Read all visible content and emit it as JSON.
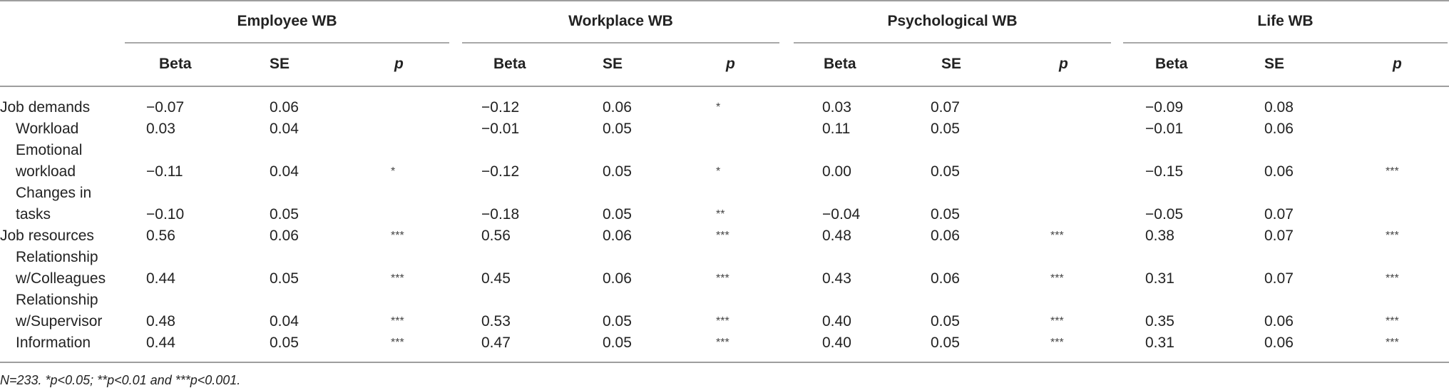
{
  "table": {
    "groups": [
      "Employee WB",
      "Workplace WB",
      "Psychological WB",
      "Life WB"
    ],
    "columns": [
      "Beta",
      "SE",
      "p"
    ],
    "rows": [
      {
        "label": "Job demands",
        "indent": 0,
        "label_top": "",
        "cells": [
          "−0.07",
          "0.06",
          "",
          "−0.12",
          "0.06",
          "*",
          "0.03",
          "0.07",
          "",
          "−0.09",
          "0.08",
          ""
        ]
      },
      {
        "label": "Workload",
        "indent": 1,
        "label_top": "",
        "cells": [
          "0.03",
          "0.04",
          "",
          "−0.01",
          "0.05",
          "",
          "0.11",
          "0.05",
          "",
          "−0.01",
          "0.06",
          ""
        ]
      },
      {
        "label": "workload",
        "indent": 1,
        "label_top": "Emotional",
        "cells": [
          "−0.11",
          "0.04",
          "*",
          "−0.12",
          "0.05",
          "*",
          "0.00",
          "0.05",
          "",
          "−0.15",
          "0.06",
          "***"
        ]
      },
      {
        "label": "tasks",
        "indent": 1,
        "label_top": "Changes in",
        "cells": [
          "−0.10",
          "0.05",
          "",
          "−0.18",
          "0.05",
          "**",
          "−0.04",
          "0.05",
          "",
          "−0.05",
          "0.07",
          ""
        ]
      },
      {
        "label": "Job resources",
        "indent": 0,
        "label_top": "",
        "cells": [
          "0.56",
          "0.06",
          "***",
          "0.56",
          "0.06",
          "***",
          "0.48",
          "0.06",
          "***",
          "0.38",
          "0.07",
          "***"
        ]
      },
      {
        "label": "w/Colleagues",
        "indent": 1,
        "label_top": "Relationship",
        "cells": [
          "0.44",
          "0.05",
          "***",
          "0.45",
          "0.06",
          "***",
          "0.43",
          "0.06",
          "***",
          "0.31",
          "0.07",
          "***"
        ]
      },
      {
        "label": "w/Supervisor",
        "indent": 1,
        "label_top": "Relationship",
        "cells": [
          "0.48",
          "0.04",
          "***",
          "0.53",
          "0.05",
          "***",
          "0.40",
          "0.05",
          "***",
          "0.35",
          "0.06",
          "***"
        ]
      },
      {
        "label": "Information",
        "indent": 1,
        "label_top": "",
        "cells": [
          "0.44",
          "0.05",
          "***",
          "0.47",
          "0.05",
          "***",
          "0.40",
          "0.05",
          "***",
          "0.31",
          "0.06",
          "***"
        ]
      }
    ],
    "note": "N=233. *p<0.05; **p<0.01 and ***p<0.001."
  }
}
